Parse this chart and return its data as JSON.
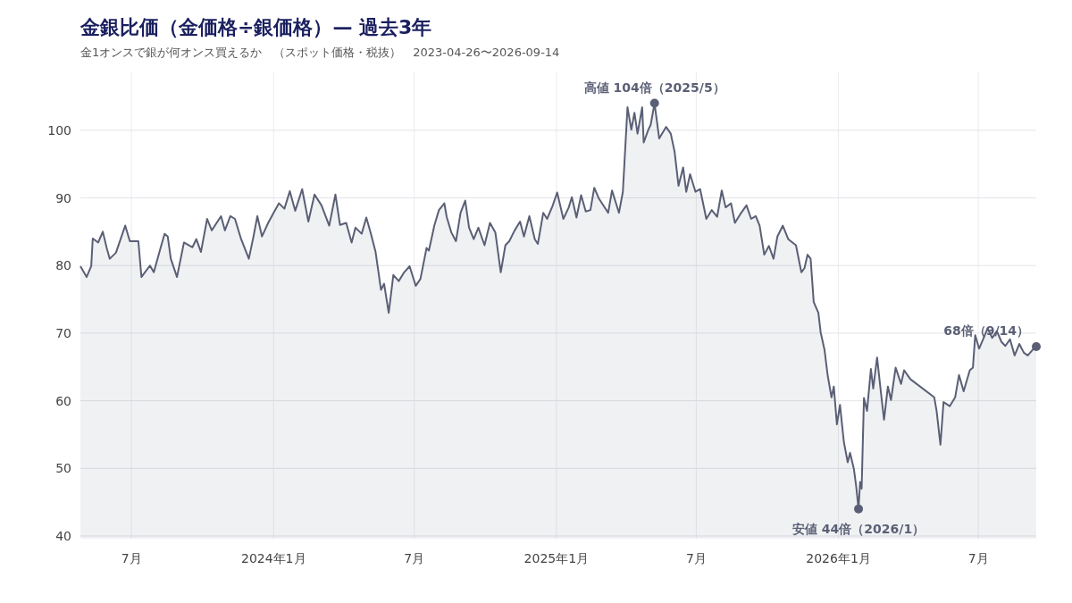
{
  "chart_data": {
    "type": "area",
    "title": "金銀比価（金価格÷銀価格）— 過去3年",
    "subtitle": "金1オンスで銀が何オンス買えるか　（スポット価格・税抜）　2023-04-26〜2026-09-14",
    "color": "#5a5f75",
    "grid": true,
    "xlim": [
      "2023-04-26",
      "2026-09-14"
    ],
    "ylim": [
      39.6,
      108.7
    ],
    "xticks": [
      {
        "value": "2023-07-01",
        "label": "7月"
      },
      {
        "value": "2024-01-01",
        "label": "2024年1月"
      },
      {
        "value": "2024-07-01",
        "label": "7月"
      },
      {
        "value": "2025-01-01",
        "label": "2025年1月"
      },
      {
        "value": "2025-07-01",
        "label": "7月"
      },
      {
        "value": "2026-01-01",
        "label": "2026年1月"
      },
      {
        "value": "2026-07-01",
        "label": "7月"
      }
    ],
    "yticks": [
      40,
      50,
      60,
      70,
      80,
      90,
      100
    ],
    "annotations": [
      {
        "text": "高値 104倍（2025/5）",
        "x": "2025-05-08",
        "y": 104
      },
      {
        "text": "安値 44倍（2026/1）",
        "x": "2026-01-27",
        "y": 44
      },
      {
        "text": "68倍（9/14）",
        "x": "2026-09-14",
        "y": 68
      }
    ],
    "x": [
      "2023-04-26",
      "2023-05-04",
      "2023-05-10",
      "2023-05-12",
      "2023-05-19",
      "2023-05-25",
      "2023-05-30",
      "2023-06-03",
      "2023-06-11",
      "2023-06-23",
      "2023-06-29",
      "2023-07-10",
      "2023-07-14",
      "2023-07-25",
      "2023-07-30",
      "2023-08-08",
      "2023-08-13",
      "2023-08-17",
      "2023-08-21",
      "2023-08-29",
      "2023-09-07",
      "2023-09-18",
      "2023-09-23",
      "2023-09-29",
      "2023-10-07",
      "2023-10-13",
      "2023-10-25",
      "2023-10-30",
      "2023-11-06",
      "2023-11-12",
      "2023-11-20",
      "2023-11-30",
      "2023-12-06",
      "2023-12-11",
      "2023-12-17",
      "2023-12-25",
      "2024-01-01",
      "2024-01-08",
      "2024-01-15",
      "2024-01-22",
      "2024-01-29",
      "2024-02-07",
      "2024-02-15",
      "2024-02-23",
      "2024-03-03",
      "2024-03-13",
      "2024-03-21",
      "2024-03-27",
      "2024-04-04",
      "2024-04-11",
      "2024-04-16",
      "2024-04-24",
      "2024-04-30",
      "2024-05-06",
      "2024-05-12",
      "2024-05-19",
      "2024-05-23",
      "2024-05-29",
      "2024-06-04",
      "2024-06-11",
      "2024-06-18",
      "2024-06-25",
      "2024-07-03",
      "2024-07-09",
      "2024-07-17",
      "2024-07-20",
      "2024-07-27",
      "2024-08-02",
      "2024-08-09",
      "2024-08-12",
      "2024-08-18",
      "2024-08-24",
      "2024-08-30",
      "2024-09-05",
      "2024-09-10",
      "2024-09-16",
      "2024-09-22",
      "2024-09-30",
      "2024-10-07",
      "2024-10-14",
      "2024-10-21",
      "2024-10-27",
      "2024-11-01",
      "2024-11-08",
      "2024-11-15",
      "2024-11-20",
      "2024-11-27",
      "2024-12-04",
      "2024-12-08",
      "2024-12-15",
      "2024-12-20",
      "2024-12-27",
      "2025-01-02",
      "2025-01-10",
      "2025-01-17",
      "2025-01-21",
      "2025-01-27",
      "2025-02-02",
      "2025-02-08",
      "2025-02-14",
      "2025-02-19",
      "2025-02-25",
      "2025-03-09",
      "2025-03-14",
      "2025-03-23",
      "2025-03-28",
      "2025-04-03",
      "2025-04-08",
      "2025-04-12",
      "2025-04-16",
      "2025-04-22",
      "2025-04-24",
      "2025-04-30",
      "2025-05-03",
      "2025-05-08",
      "2025-05-14",
      "2025-05-23",
      "2025-05-29",
      "2025-06-03",
      "2025-06-08",
      "2025-06-14",
      "2025-06-18",
      "2025-06-23",
      "2025-06-30",
      "2025-07-06",
      "2025-07-14",
      "2025-07-21",
      "2025-07-28",
      "2025-08-03",
      "2025-08-08",
      "2025-08-15",
      "2025-08-20",
      "2025-08-27",
      "2025-09-04",
      "2025-09-10",
      "2025-09-16",
      "2025-09-21",
      "2025-09-27",
      "2025-10-03",
      "2025-10-09",
      "2025-10-14",
      "2025-10-21",
      "2025-10-28",
      "2025-11-07",
      "2025-11-14",
      "2025-11-18",
      "2025-11-22",
      "2025-11-26",
      "2025-11-30",
      "2025-12-06",
      "2025-12-09",
      "2025-12-14",
      "2025-12-18",
      "2025-12-23",
      "2025-12-26",
      "2025-12-30",
      "2026-01-03",
      "2026-01-08",
      "2026-01-13",
      "2026-01-16",
      "2026-01-21",
      "2026-01-24",
      "2026-01-27",
      "2026-01-29",
      "2026-01-31",
      "2026-02-03",
      "2026-02-07",
      "2026-02-12",
      "2026-02-15",
      "2026-02-20",
      "2026-02-25",
      "2026-03-01",
      "2026-03-06",
      "2026-03-10",
      "2026-03-16",
      "2026-03-23",
      "2026-03-27",
      "2026-04-04",
      "2026-05-05",
      "2026-05-08",
      "2026-05-13",
      "2026-05-17",
      "2026-05-25",
      "2026-06-01",
      "2026-06-06",
      "2026-06-12",
      "2026-06-20",
      "2026-06-24",
      "2026-06-27",
      "2026-07-02",
      "2026-07-08",
      "2026-07-13",
      "2026-07-19",
      "2026-07-25",
      "2026-07-31",
      "2026-08-05",
      "2026-08-11",
      "2026-08-17",
      "2026-08-23",
      "2026-08-29",
      "2026-09-03",
      "2026-09-09",
      "2026-09-14"
    ],
    "values": [
      79.9,
      78.3,
      79.9,
      84,
      83.4,
      85,
      82.6,
      81,
      81.9,
      85.9,
      83.6,
      83.6,
      78.3,
      80,
      79,
      82.7,
      84.7,
      84.3,
      81,
      78.3,
      83.4,
      82.7,
      83.9,
      82,
      86.9,
      85.2,
      87.3,
      85.2,
      87.3,
      86.9,
      83.9,
      81,
      84.3,
      87.3,
      84.3,
      86.3,
      87.8,
      89.2,
      88.4,
      91,
      88.1,
      91.3,
      86.5,
      90.5,
      88.9,
      85.9,
      90.5,
      86,
      86.3,
      83.4,
      85.6,
      84.7,
      87.1,
      84.7,
      82,
      76.4,
      77.3,
      73,
      78.6,
      77.7,
      79,
      79.9,
      77,
      78,
      82.6,
      82.2,
      85.9,
      88.2,
      89.2,
      87.2,
      84.9,
      83.6,
      87.8,
      89.6,
      85.6,
      83.9,
      85.6,
      83,
      86.3,
      84.9,
      79,
      83,
      83.6,
      85.2,
      86.5,
      84.3,
      87.3,
      83.9,
      83.2,
      87.8,
      86.9,
      88.8,
      90.8,
      86.9,
      88.6,
      90.1,
      87.1,
      90.4,
      88,
      88.2,
      91.5,
      89.9,
      87.8,
      91.1,
      87.8,
      90.9,
      103.4,
      100.1,
      102.6,
      99.5,
      103.4,
      98.2,
      100.1,
      100.8,
      104,
      98.8,
      100.5,
      99.5,
      96.8,
      91.8,
      94.5,
      90.9,
      93.5,
      90.9,
      91.3,
      86.9,
      88.2,
      87.2,
      91.1,
      88.6,
      89.2,
      86.3,
      87.6,
      88.9,
      86.9,
      87.3,
      85.9,
      81.6,
      82.9,
      81,
      84.3,
      85.9,
      83.9,
      83,
      79,
      79.6,
      81.6,
      81,
      74.6,
      73,
      70.1,
      67.5,
      63.8,
      60.5,
      62.1,
      56.5,
      59.4,
      53.9,
      50.9,
      52.3,
      49.9,
      47.3,
      44,
      48,
      47,
      60.4,
      58.5,
      64.7,
      61.8,
      66.4,
      61.2,
      57.2,
      62.1,
      60.1,
      64.9,
      62.5,
      64.5,
      63.2,
      60.5,
      58.5,
      53.5,
      59.8,
      59.2,
      60.5,
      63.8,
      61.4,
      64.5,
      64.9,
      69.7,
      67.7,
      69.3,
      70.7,
      69.3,
      70.3,
      68.7,
      68.1,
      69.1,
      66.7,
      68.4,
      67.1,
      66.7,
      67.5,
      68
    ]
  }
}
